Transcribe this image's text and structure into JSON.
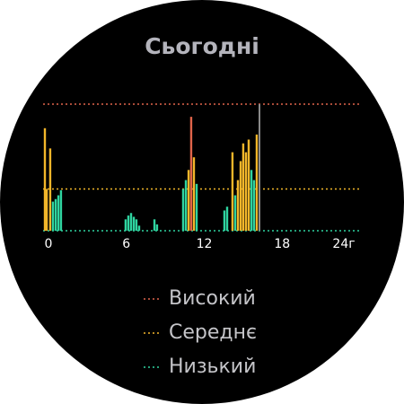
{
  "chart_data": {
    "type": "bar",
    "title": "Сьогодні",
    "xlim": [
      0,
      24
    ],
    "xticks": [
      0,
      6,
      12,
      18,
      {
        "value": 24,
        "label": "24г"
      }
    ],
    "ylim": [
      0,
      100
    ],
    "now": 16.53,
    "now_color": "#8a8a8a",
    "series": [
      {
        "name": "Високий",
        "color": "#e0644a",
        "threshold": 100,
        "x": [
          11.27
        ],
        "values": [
          90
        ]
      },
      {
        "name": "Середнє",
        "color": "#f2b62a",
        "threshold": 33,
        "x": [
          0,
          0.14,
          0.41,
          11.07,
          11.48,
          14.45,
          14.87,
          15.08,
          15.28,
          15.49,
          15.7,
          16.32
        ],
        "values": [
          81,
          33,
          65,
          48,
          58,
          62,
          40,
          55,
          69,
          62,
          72,
          76
        ]
      },
      {
        "name": "Низький",
        "color": "#2fd4a0",
        "threshold": 0,
        "x": [
          0.62,
          0.83,
          1.04,
          1.24,
          6.22,
          6.43,
          6.64,
          6.85,
          7.05,
          7.26,
          8.44,
          8.64,
          10.65,
          10.86,
          11.69,
          13.83,
          14.04,
          14.66,
          15.91,
          16.11
        ],
        "values": [
          23,
          25,
          28,
          32,
          9,
          12,
          14,
          11,
          9,
          4,
          9,
          5,
          33,
          40,
          37,
          16,
          19,
          28,
          48,
          40
        ]
      }
    ]
  }
}
